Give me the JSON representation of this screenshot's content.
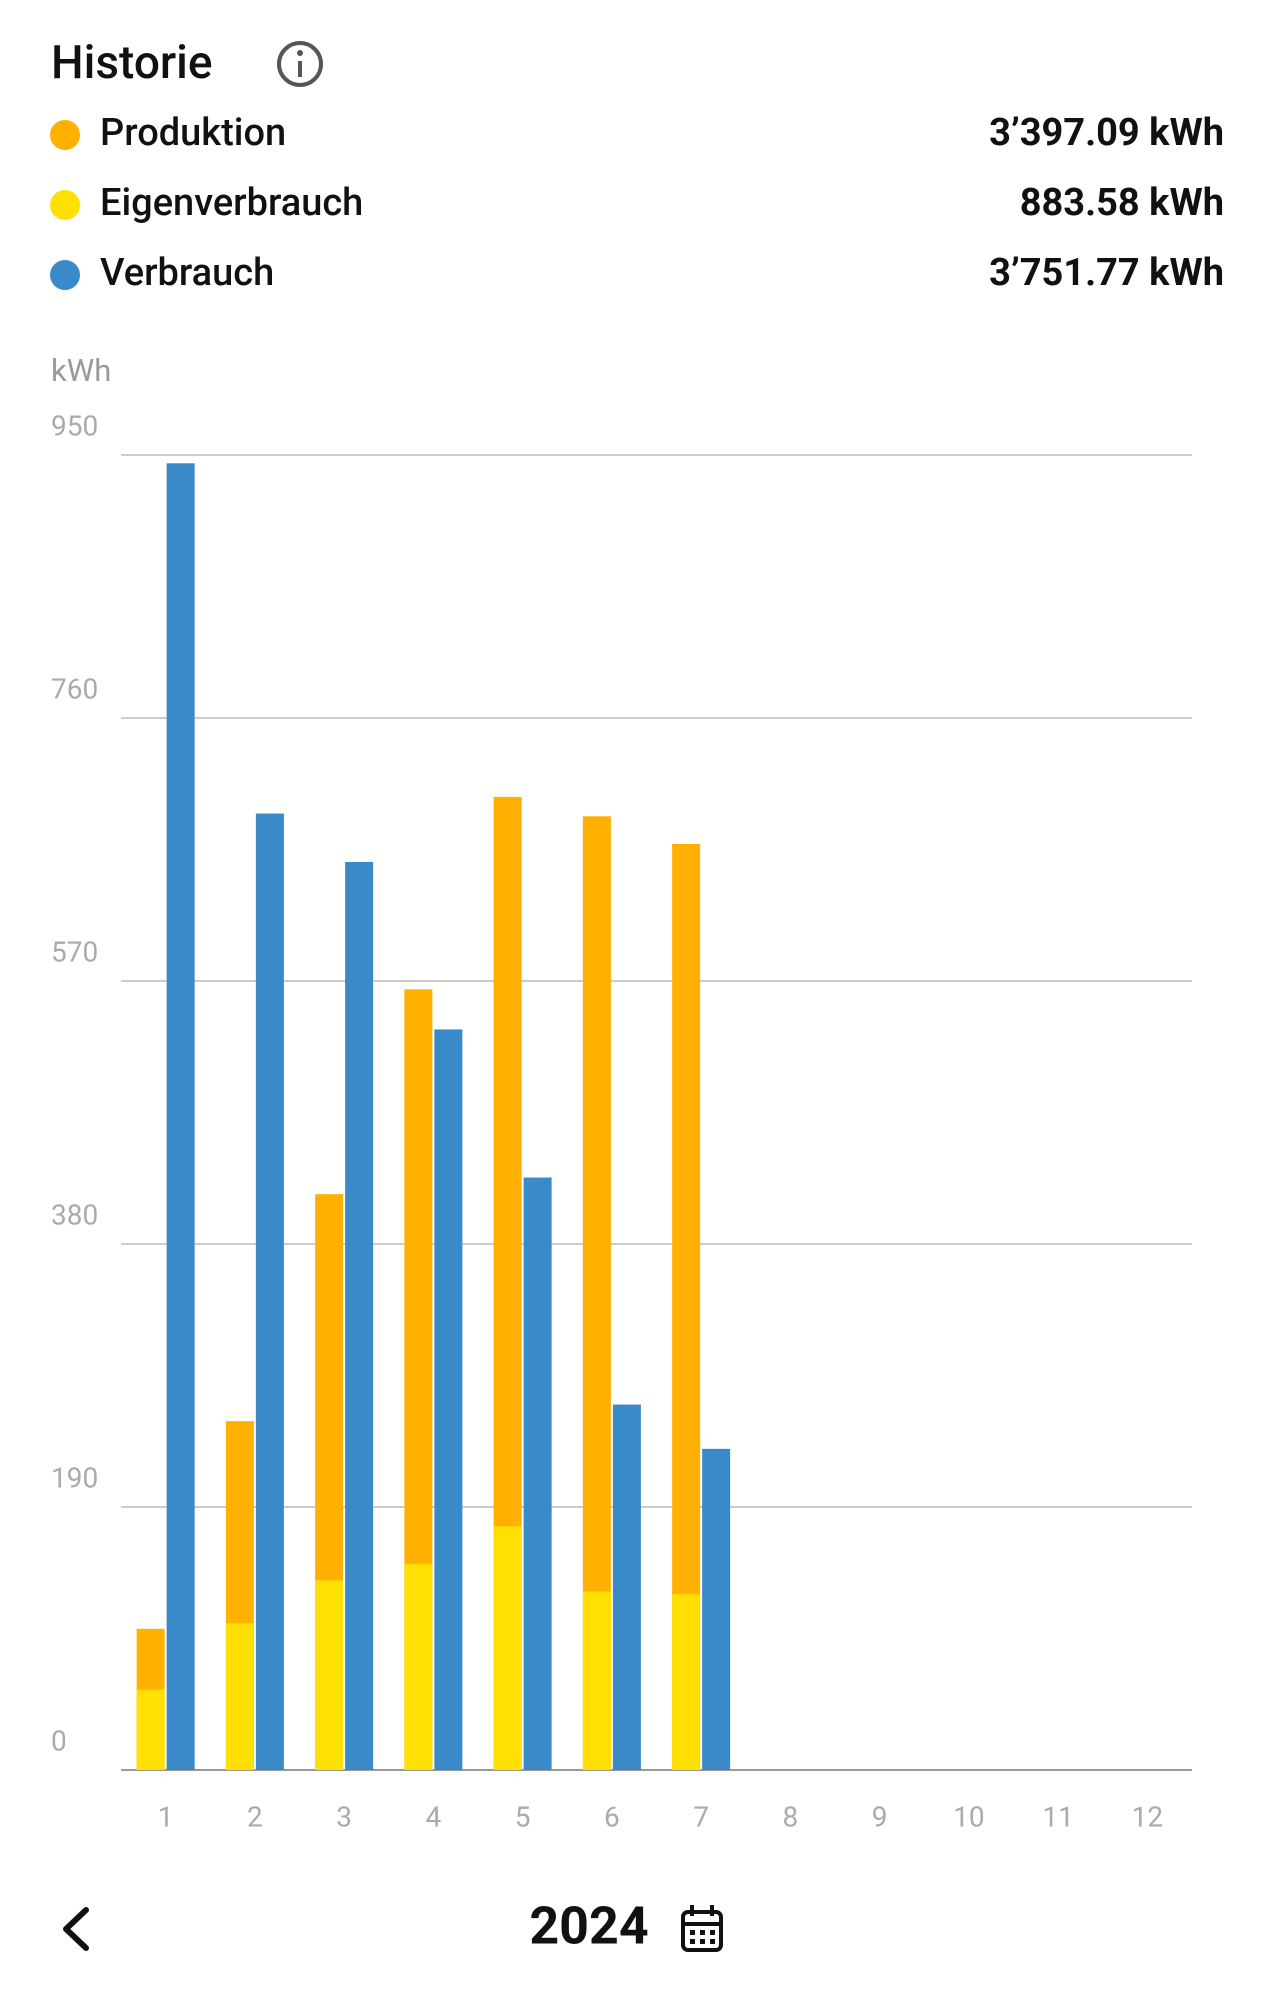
{
  "chart_data": {
    "type": "bar",
    "title": "Historie",
    "y_label": "kWh",
    "period": "2024",
    "categories": [
      "1",
      "2",
      "3",
      "4",
      "5",
      "6",
      "7",
      "8",
      "9",
      "10",
      "11",
      "12"
    ],
    "series": [
      {
        "name": "Produktion",
        "color": "#FFB000",
        "total": "3’397.09 kWh",
        "values": [
          102,
          252,
          416,
          564,
          703,
          689,
          669,
          null,
          null,
          null,
          null,
          null
        ]
      },
      {
        "name": "Eigenverbrauch",
        "color": "#FFE000",
        "total": "883.58 kWh",
        "values": [
          58,
          106,
          137,
          149,
          176,
          129,
          127,
          null,
          null,
          null,
          null,
          null
        ]
      },
      {
        "name": "Verbrauch",
        "color": "#3A89C9",
        "total": "3’751.77 kWh",
        "values": [
          944,
          691,
          656,
          535,
          428,
          264,
          232,
          null,
          null,
          null,
          null,
          null
        ]
      }
    ],
    "ylim": [
      0,
      950
    ],
    "yticks": [
      0,
      190,
      380,
      570,
      760,
      950
    ],
    "grid": true
  }
}
